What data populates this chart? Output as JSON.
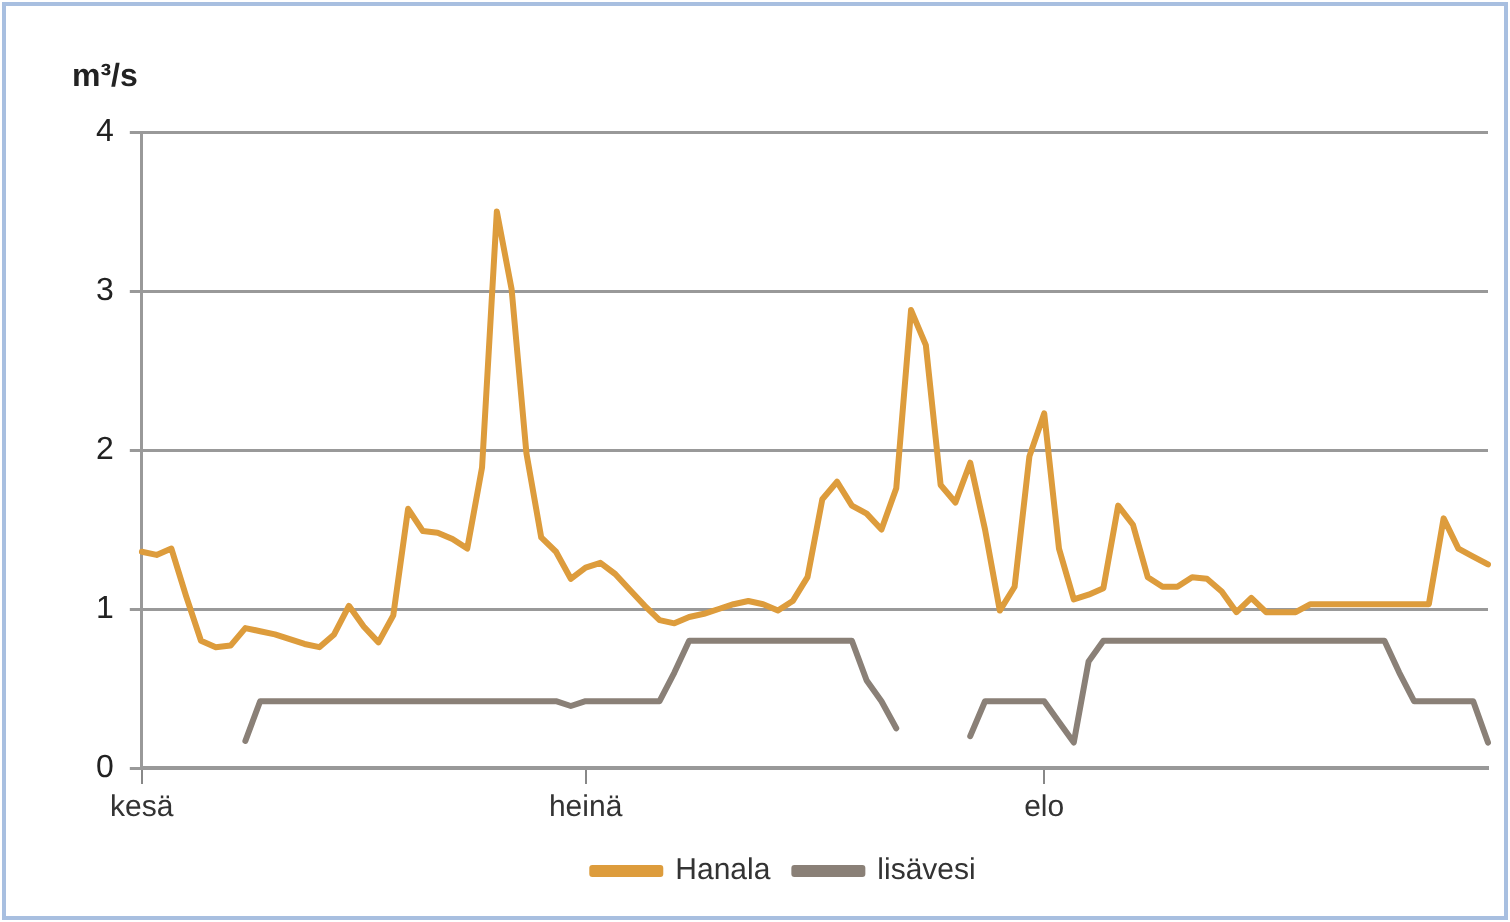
{
  "chart_data": {
    "type": "line",
    "ylabel": "m³/s",
    "categories": [
      "kesä",
      null,
      null,
      null,
      null,
      null,
      null,
      null,
      null,
      null,
      null,
      null,
      null,
      null,
      null,
      null,
      null,
      null,
      null,
      null,
      null,
      null,
      null,
      null,
      null,
      null,
      null,
      null,
      null,
      null,
      "heinä",
      null,
      null,
      null,
      null,
      null,
      null,
      null,
      null,
      null,
      null,
      null,
      null,
      null,
      null,
      null,
      null,
      null,
      null,
      null,
      null,
      null,
      null,
      null,
      null,
      null,
      null,
      null,
      null,
      null,
      null,
      "elo",
      null,
      null,
      null,
      null,
      null,
      null,
      null,
      null,
      null,
      null,
      null,
      null,
      null,
      null,
      null,
      null,
      null,
      null,
      null,
      null,
      null,
      null,
      null,
      null,
      null,
      null,
      null,
      null,
      null,
      null
    ],
    "series": [
      {
        "name": "Hanala",
        "color": "#dd9c3c",
        "values": [
          1.36,
          1.34,
          1.38,
          1.08,
          0.8,
          0.76,
          0.77,
          0.88,
          0.86,
          0.84,
          0.81,
          0.78,
          0.76,
          0.84,
          1.02,
          0.89,
          0.79,
          0.96,
          1.63,
          1.49,
          1.48,
          1.44,
          1.38,
          1.89,
          3.5,
          3.01,
          1.98,
          1.45,
          1.36,
          1.19,
          1.26,
          1.29,
          1.22,
          1.12,
          1.02,
          0.93,
          0.91,
          0.95,
          0.97,
          1.0,
          1.03,
          1.05,
          1.03,
          0.99,
          1.05,
          1.2,
          1.69,
          1.8,
          1.65,
          1.6,
          1.5,
          1.76,
          2.88,
          2.66,
          1.78,
          1.67,
          1.92,
          1.5,
          0.99,
          1.14,
          1.96,
          2.23,
          1.38,
          1.06,
          1.09,
          1.13,
          1.65,
          1.53,
          1.2,
          1.14,
          1.14,
          1.2,
          1.19,
          1.11,
          0.98,
          1.07,
          0.98,
          0.98,
          0.98,
          1.03,
          1.03,
          1.03,
          1.03,
          1.03,
          1.03,
          1.03,
          1.03,
          1.03,
          1.57,
          1.38,
          1.33,
          1.28
        ]
      },
      {
        "name": "lisävesi",
        "color": "#8a8077",
        "values": [
          null,
          null,
          null,
          null,
          null,
          null,
          null,
          0.17,
          0.42,
          0.42,
          0.42,
          0.42,
          0.42,
          0.42,
          0.42,
          0.42,
          0.42,
          0.42,
          0.42,
          0.42,
          0.42,
          0.42,
          0.42,
          0.42,
          0.42,
          0.42,
          0.42,
          0.42,
          0.42,
          0.39,
          0.42,
          0.42,
          0.42,
          0.42,
          0.42,
          0.42,
          0.6,
          0.8,
          0.8,
          0.8,
          0.8,
          0.8,
          0.8,
          0.8,
          0.8,
          0.8,
          0.8,
          0.8,
          0.8,
          0.55,
          0.42,
          0.25,
          null,
          null,
          null,
          null,
          0.2,
          0.42,
          0.42,
          0.42,
          0.42,
          0.42,
          0.29,
          0.16,
          0.67,
          0.8,
          0.8,
          0.8,
          0.8,
          0.8,
          0.8,
          0.8,
          0.8,
          0.8,
          0.8,
          0.8,
          0.8,
          0.8,
          0.8,
          0.8,
          0.8,
          0.8,
          0.8,
          0.8,
          0.8,
          0.6,
          0.42,
          0.42,
          0.42,
          0.42,
          0.42,
          0.16
        ]
      }
    ],
    "ylim": [
      0,
      4
    ],
    "yticks": [
      0,
      1,
      2,
      3,
      4
    ],
    "grid": "y",
    "legend": "bottom",
    "marker": "none",
    "line_style": "solid"
  }
}
